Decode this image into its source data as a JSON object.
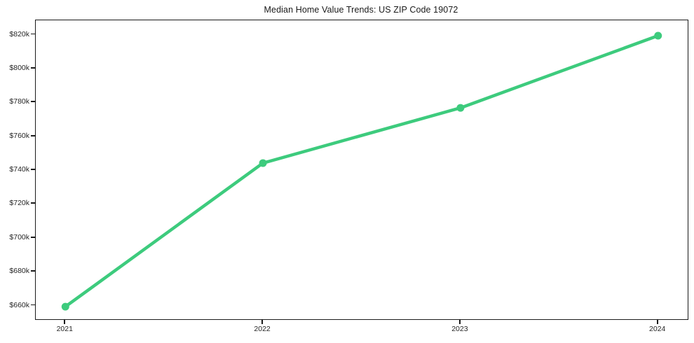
{
  "chart_data": {
    "type": "line",
    "title": "Median Home Value Trends: US ZIP Code 19072",
    "xlabel": "",
    "ylabel": "",
    "x": [
      2021,
      2022,
      2023,
      2024
    ],
    "series": [
      {
        "name": "Median Home Value",
        "values": [
          659400,
          744200,
          776800,
          819400
        ]
      }
    ],
    "x_tick_labels": [
      "2021",
      "2022",
      "2023",
      "2024"
    ],
    "y_ticks": [
      660000,
      680000,
      700000,
      720000,
      740000,
      760000,
      780000,
      800000,
      820000
    ],
    "y_tick_labels": [
      "$660k",
      "$680k",
      "$700k",
      "$720k",
      "$740k",
      "$760k",
      "$780k",
      "$800k",
      "$820k"
    ],
    "xlim": [
      2020.85,
      2024.15
    ],
    "ylim": [
      652000,
      828500
    ],
    "grid": false,
    "legend": null,
    "line_color": "#3dcb7d",
    "marker_color": "#3dcb7d",
    "spine_color": "#1a1a1a",
    "text_color": "#262626"
  }
}
